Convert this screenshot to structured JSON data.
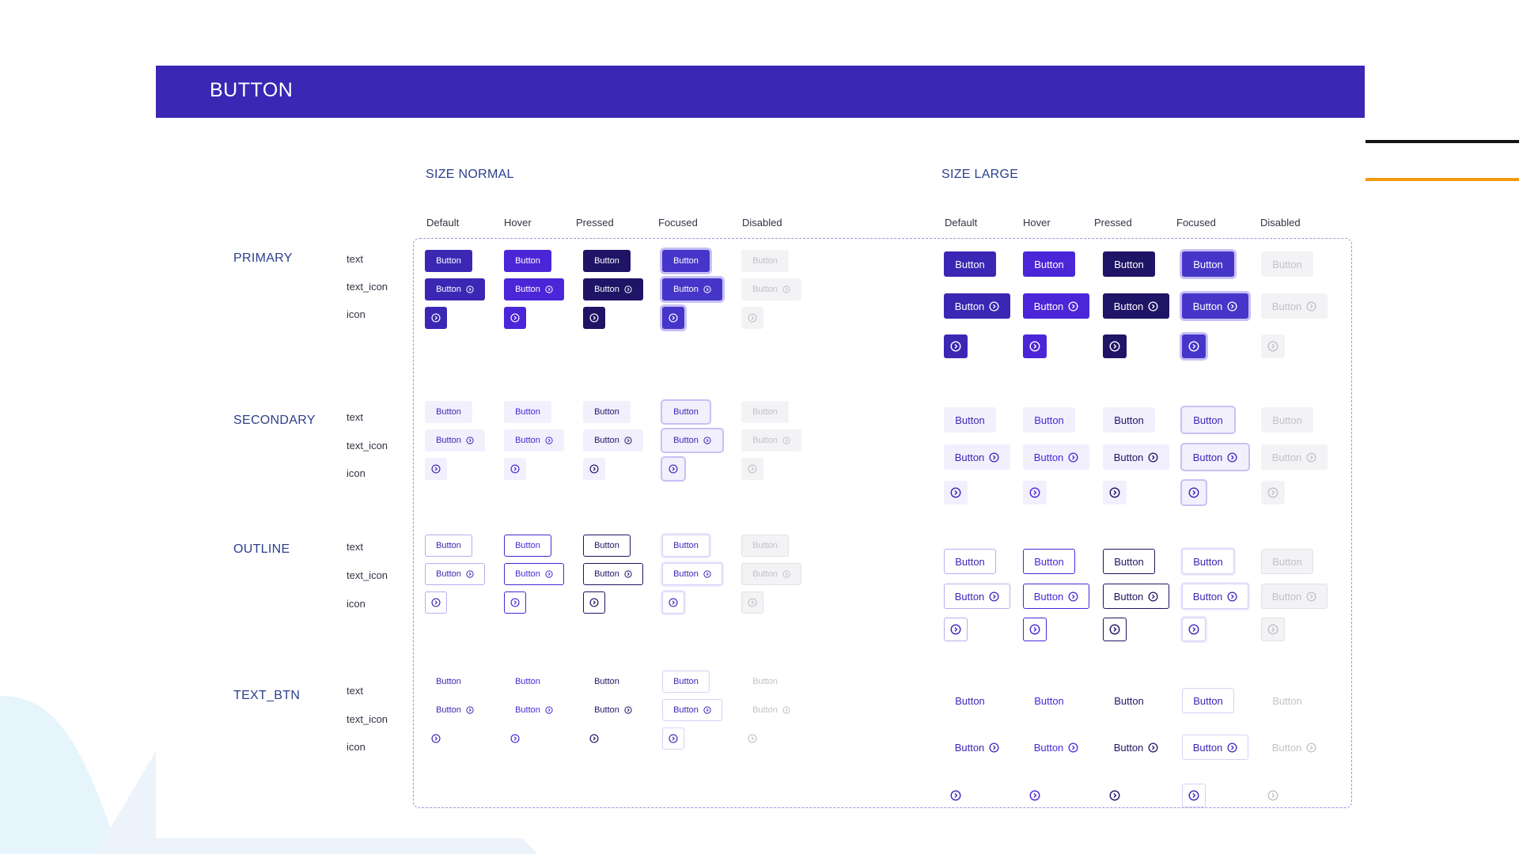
{
  "header": {
    "title": "BUTTON"
  },
  "sizes": [
    {
      "key": "normal",
      "label": "SIZE NORMAL"
    },
    {
      "key": "large",
      "label": "SIZE LARGE"
    }
  ],
  "states": [
    "Default",
    "Hover",
    "Pressed",
    "Focused",
    "Disabled"
  ],
  "variants": [
    "text",
    "text_icon",
    "icon"
  ],
  "types": [
    {
      "key": "primary",
      "label": "PRIMARY"
    },
    {
      "key": "secondary",
      "label": "SECONDARY"
    },
    {
      "key": "outline",
      "label": "OUTLINE"
    },
    {
      "key": "text_btn",
      "label": "TEXT_BTN"
    }
  ],
  "button_label": "Button",
  "icon_name": "chevron-right-circle-icon",
  "colors": {
    "header": "#3b27b4",
    "section_label": "#2c3f8c",
    "frame_border": "#9c92e6",
    "primary_default": "#3b27b4",
    "primary_hover": "#4a26d8",
    "primary_pressed": "#1f1465",
    "primary_focused": "#4536c9",
    "focus_ring": "#c7c0f5",
    "secondary_bg": "#f2f0fd",
    "disabled_bg": "#f3f3f5",
    "disabled_text": "#c2c2c8",
    "deco_black": "#141414",
    "deco_orange": "#f39a12"
  }
}
